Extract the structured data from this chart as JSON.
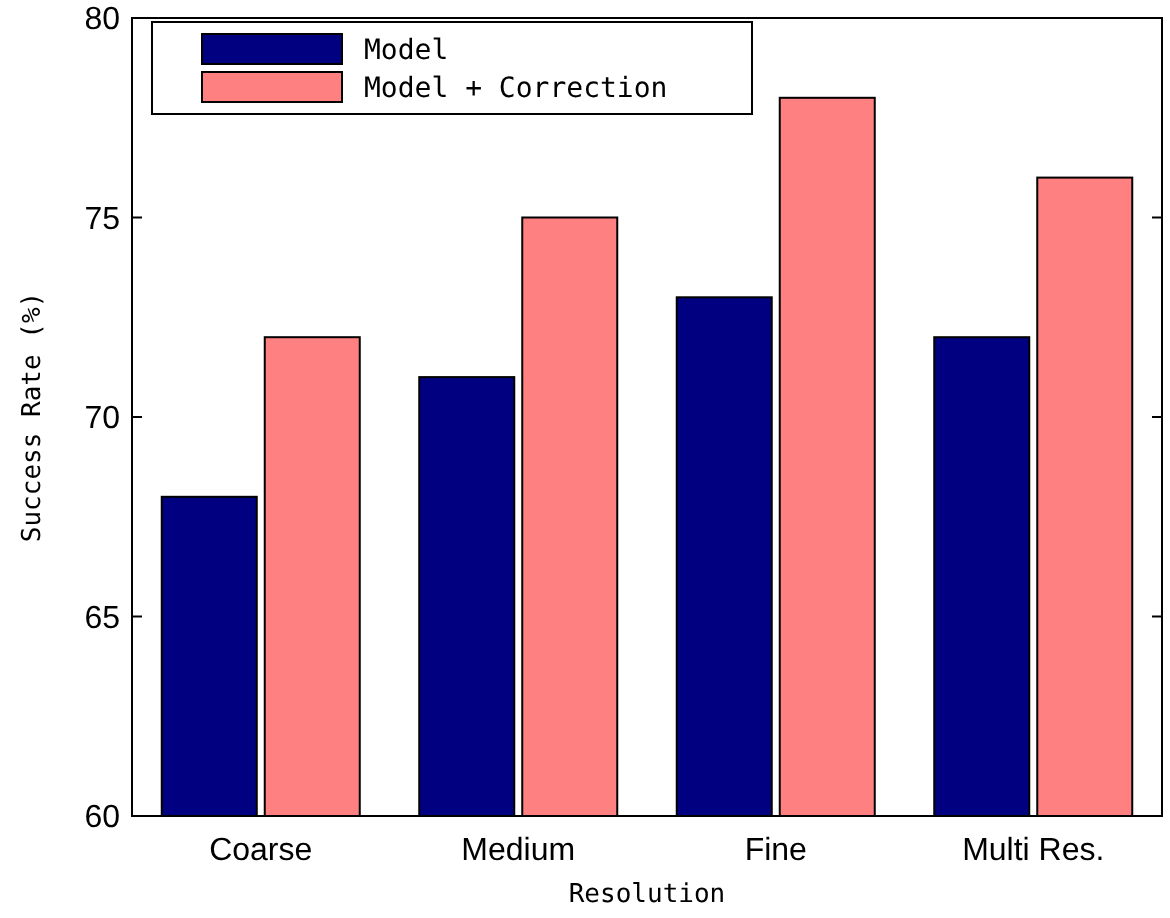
{
  "chart_data": {
    "type": "bar",
    "xlabel": "Resolution",
    "ylabel": "Success Rate (%)",
    "categories": [
      "Coarse",
      "Medium",
      "Fine",
      "Multi Res."
    ],
    "series": [
      {
        "name": "Model",
        "color": "#000080",
        "values": [
          68,
          71,
          73,
          72
        ]
      },
      {
        "name": "Model + Correction",
        "color": "#ff8080",
        "values": [
          72,
          75,
          78,
          76
        ]
      }
    ],
    "ylim": [
      60,
      80
    ],
    "yticks": [
      60,
      65,
      70,
      75,
      80
    ],
    "grid": false,
    "legend": "top left"
  }
}
